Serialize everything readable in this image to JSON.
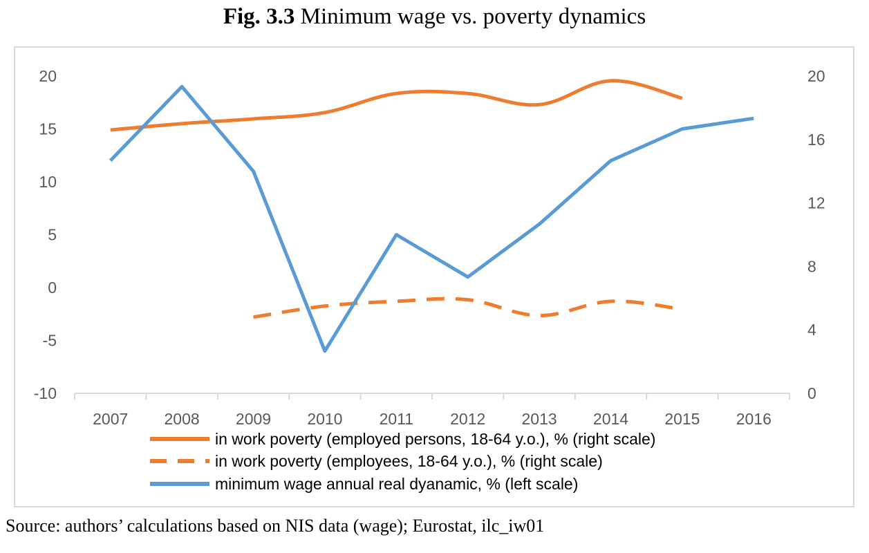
{
  "figure": {
    "title_bold": "Fig. 3.3",
    "title_rest": " Minimum wage vs. poverty dynamics",
    "source": "Source: authors’ calculations based on NIS data (wage); Eurostat, ilc_iw01"
  },
  "chart_data": {
    "type": "line",
    "title": "Fig. 3.3 Minimum wage vs. poverty dynamics",
    "categories": [
      "2007",
      "2008",
      "2009",
      "2010",
      "2011",
      "2012",
      "2013",
      "2014",
      "2015",
      "2016"
    ],
    "y_left": {
      "ylim": [
        -10,
        20
      ],
      "ticks": [
        "-10",
        "-5",
        "0",
        "5",
        "10",
        "15",
        "20"
      ]
    },
    "y_right": {
      "ylim": [
        0,
        20
      ],
      "ticks": [
        "0",
        "4",
        "8",
        "12",
        "16",
        "20"
      ]
    },
    "grid": false,
    "legend_position": "bottom",
    "series": [
      {
        "name": "in work poverty (employed persons, 18-64 y.o.), % (right scale)",
        "axis": "right",
        "style": "solid",
        "color": "#ed7d31",
        "values": [
          16.6,
          17.0,
          17.3,
          17.7,
          18.9,
          18.9,
          18.2,
          19.7,
          18.6,
          null
        ]
      },
      {
        "name": "in work poverty (employees, 18-64 y.o.), % (right scale)",
        "axis": "right",
        "style": "dashed",
        "color": "#ed7d31",
        "values": [
          null,
          null,
          4.8,
          5.5,
          5.8,
          5.9,
          4.9,
          5.8,
          5.3,
          null
        ]
      },
      {
        "name": "minimum wage annual real dyanamic, % (left scale)",
        "axis": "left",
        "style": "solid",
        "color": "#5b9bd5",
        "values": [
          12,
          19,
          11,
          -6,
          5,
          1,
          6,
          12,
          15,
          16
        ]
      }
    ]
  }
}
